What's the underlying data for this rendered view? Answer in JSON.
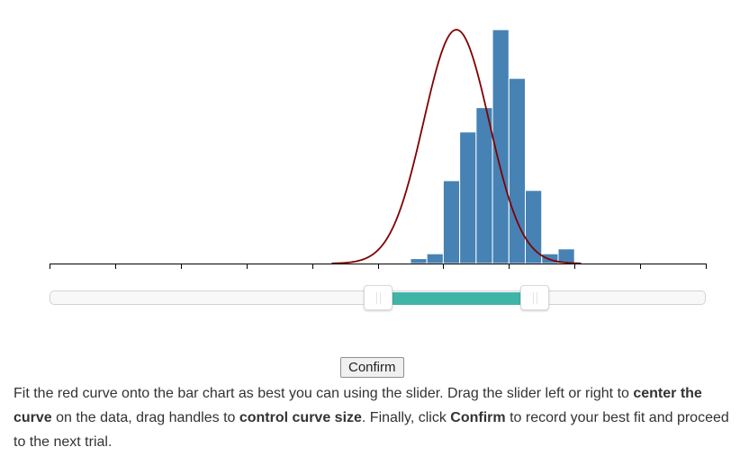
{
  "chart_data": {
    "type": "bar",
    "title": "",
    "xlabel": "",
    "ylabel": "",
    "x_ticks_count": 11,
    "bars": {
      "bin_edges": [
        5.5,
        5.75,
        6.0,
        6.25,
        6.5,
        6.75,
        7.0,
        7.25,
        7.5,
        7.75,
        8.0
      ],
      "counts": [
        1,
        2,
        17,
        27,
        32,
        48,
        38,
        15,
        2,
        3
      ],
      "color": "#4682b4"
    },
    "curve": {
      "label": "red curve",
      "type": "normal",
      "mean": 6.2,
      "sd": 0.5,
      "peak_count": 48,
      "color": "#800000"
    },
    "xlim": [
      0,
      10
    ],
    "ylim": [
      0,
      48
    ]
  },
  "slider": {
    "min": 0,
    "max": 10,
    "low_value": 5,
    "high_value": 7.4,
    "range_color": "#3fb5a8"
  },
  "confirm": {
    "label": "Confirm"
  },
  "instructions": {
    "part1": "Fit the red curve onto the bar chart as best you can using the slider. Drag the slider left or right to ",
    "bold1": "center the curve",
    "part2": " on the data, drag handles to ",
    "bold2": "control curve size",
    "part3": ". Finally, click ",
    "bold3": "Confirm",
    "part4": " to record your best fit and proceed to the next trial."
  }
}
